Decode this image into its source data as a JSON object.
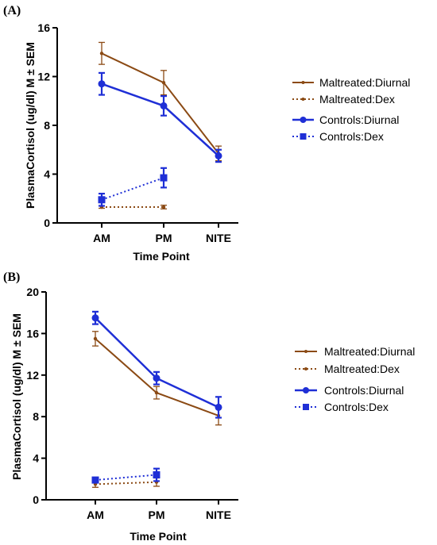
{
  "colors": {
    "maltreated": "#8b4a14",
    "controls": "#1f2fd6"
  },
  "chart_data": [
    {
      "type": "line",
      "panel_label": "(A)",
      "xlabel": "Time Point",
      "ylabel": "PlasmaCortisol (ug/dl) M ± SEM",
      "categories": [
        "AM",
        "PM",
        "NITE"
      ],
      "ylim": [
        0,
        16
      ],
      "yticks": [
        0,
        4,
        8,
        12,
        16
      ],
      "legend_position": "right",
      "series": [
        {
          "name": "Maltreated:Diurnal",
          "style": "solid",
          "marker": "dot",
          "color_key": "maltreated",
          "values": [
            13.9,
            11.5,
            5.7
          ],
          "errors": [
            0.9,
            1.0,
            0.6
          ]
        },
        {
          "name": "Maltreated:Dex",
          "style": "dotted",
          "marker": "dot",
          "color_key": "maltreated",
          "values": [
            1.3,
            1.3,
            null
          ],
          "errors": [
            0.1,
            0.15,
            null
          ]
        },
        {
          "name": "Controls:Diurnal",
          "style": "solid",
          "marker": "circle",
          "color_key": "controls",
          "values": [
            11.4,
            9.6,
            5.5
          ],
          "errors": [
            0.9,
            0.8,
            0.5
          ]
        },
        {
          "name": "Controls:Dex",
          "style": "dotted",
          "marker": "square",
          "color_key": "controls",
          "values": [
            1.9,
            3.7,
            null
          ],
          "errors": [
            0.5,
            0.8,
            null
          ]
        }
      ]
    },
    {
      "type": "line",
      "panel_label": "(B)",
      "xlabel": "Time Point",
      "ylabel": "PlasmaCortisol (ug/dl) M ± SEM",
      "categories": [
        "AM",
        "PM",
        "NITE"
      ],
      "ylim": [
        0,
        20
      ],
      "yticks": [
        0,
        4,
        8,
        12,
        16,
        20
      ],
      "legend_position": "right",
      "series": [
        {
          "name": "Maltreated:Diurnal",
          "style": "solid",
          "marker": "dot",
          "color_key": "maltreated",
          "values": [
            15.5,
            10.3,
            8.1
          ],
          "errors": [
            0.7,
            0.6,
            0.9
          ]
        },
        {
          "name": "Maltreated:Dex",
          "style": "dotted",
          "marker": "dot",
          "color_key": "maltreated",
          "values": [
            1.5,
            1.7,
            null
          ],
          "errors": [
            0.3,
            0.4,
            null
          ]
        },
        {
          "name": "Controls:Diurnal",
          "style": "solid",
          "marker": "circle",
          "color_key": "controls",
          "values": [
            17.5,
            11.7,
            8.9
          ],
          "errors": [
            0.6,
            0.6,
            1.0
          ]
        },
        {
          "name": "Controls:Dex",
          "style": "dotted",
          "marker": "square",
          "color_key": "controls",
          "values": [
            1.9,
            2.4,
            null
          ],
          "errors": [
            0.2,
            0.6,
            null
          ]
        }
      ]
    }
  ]
}
